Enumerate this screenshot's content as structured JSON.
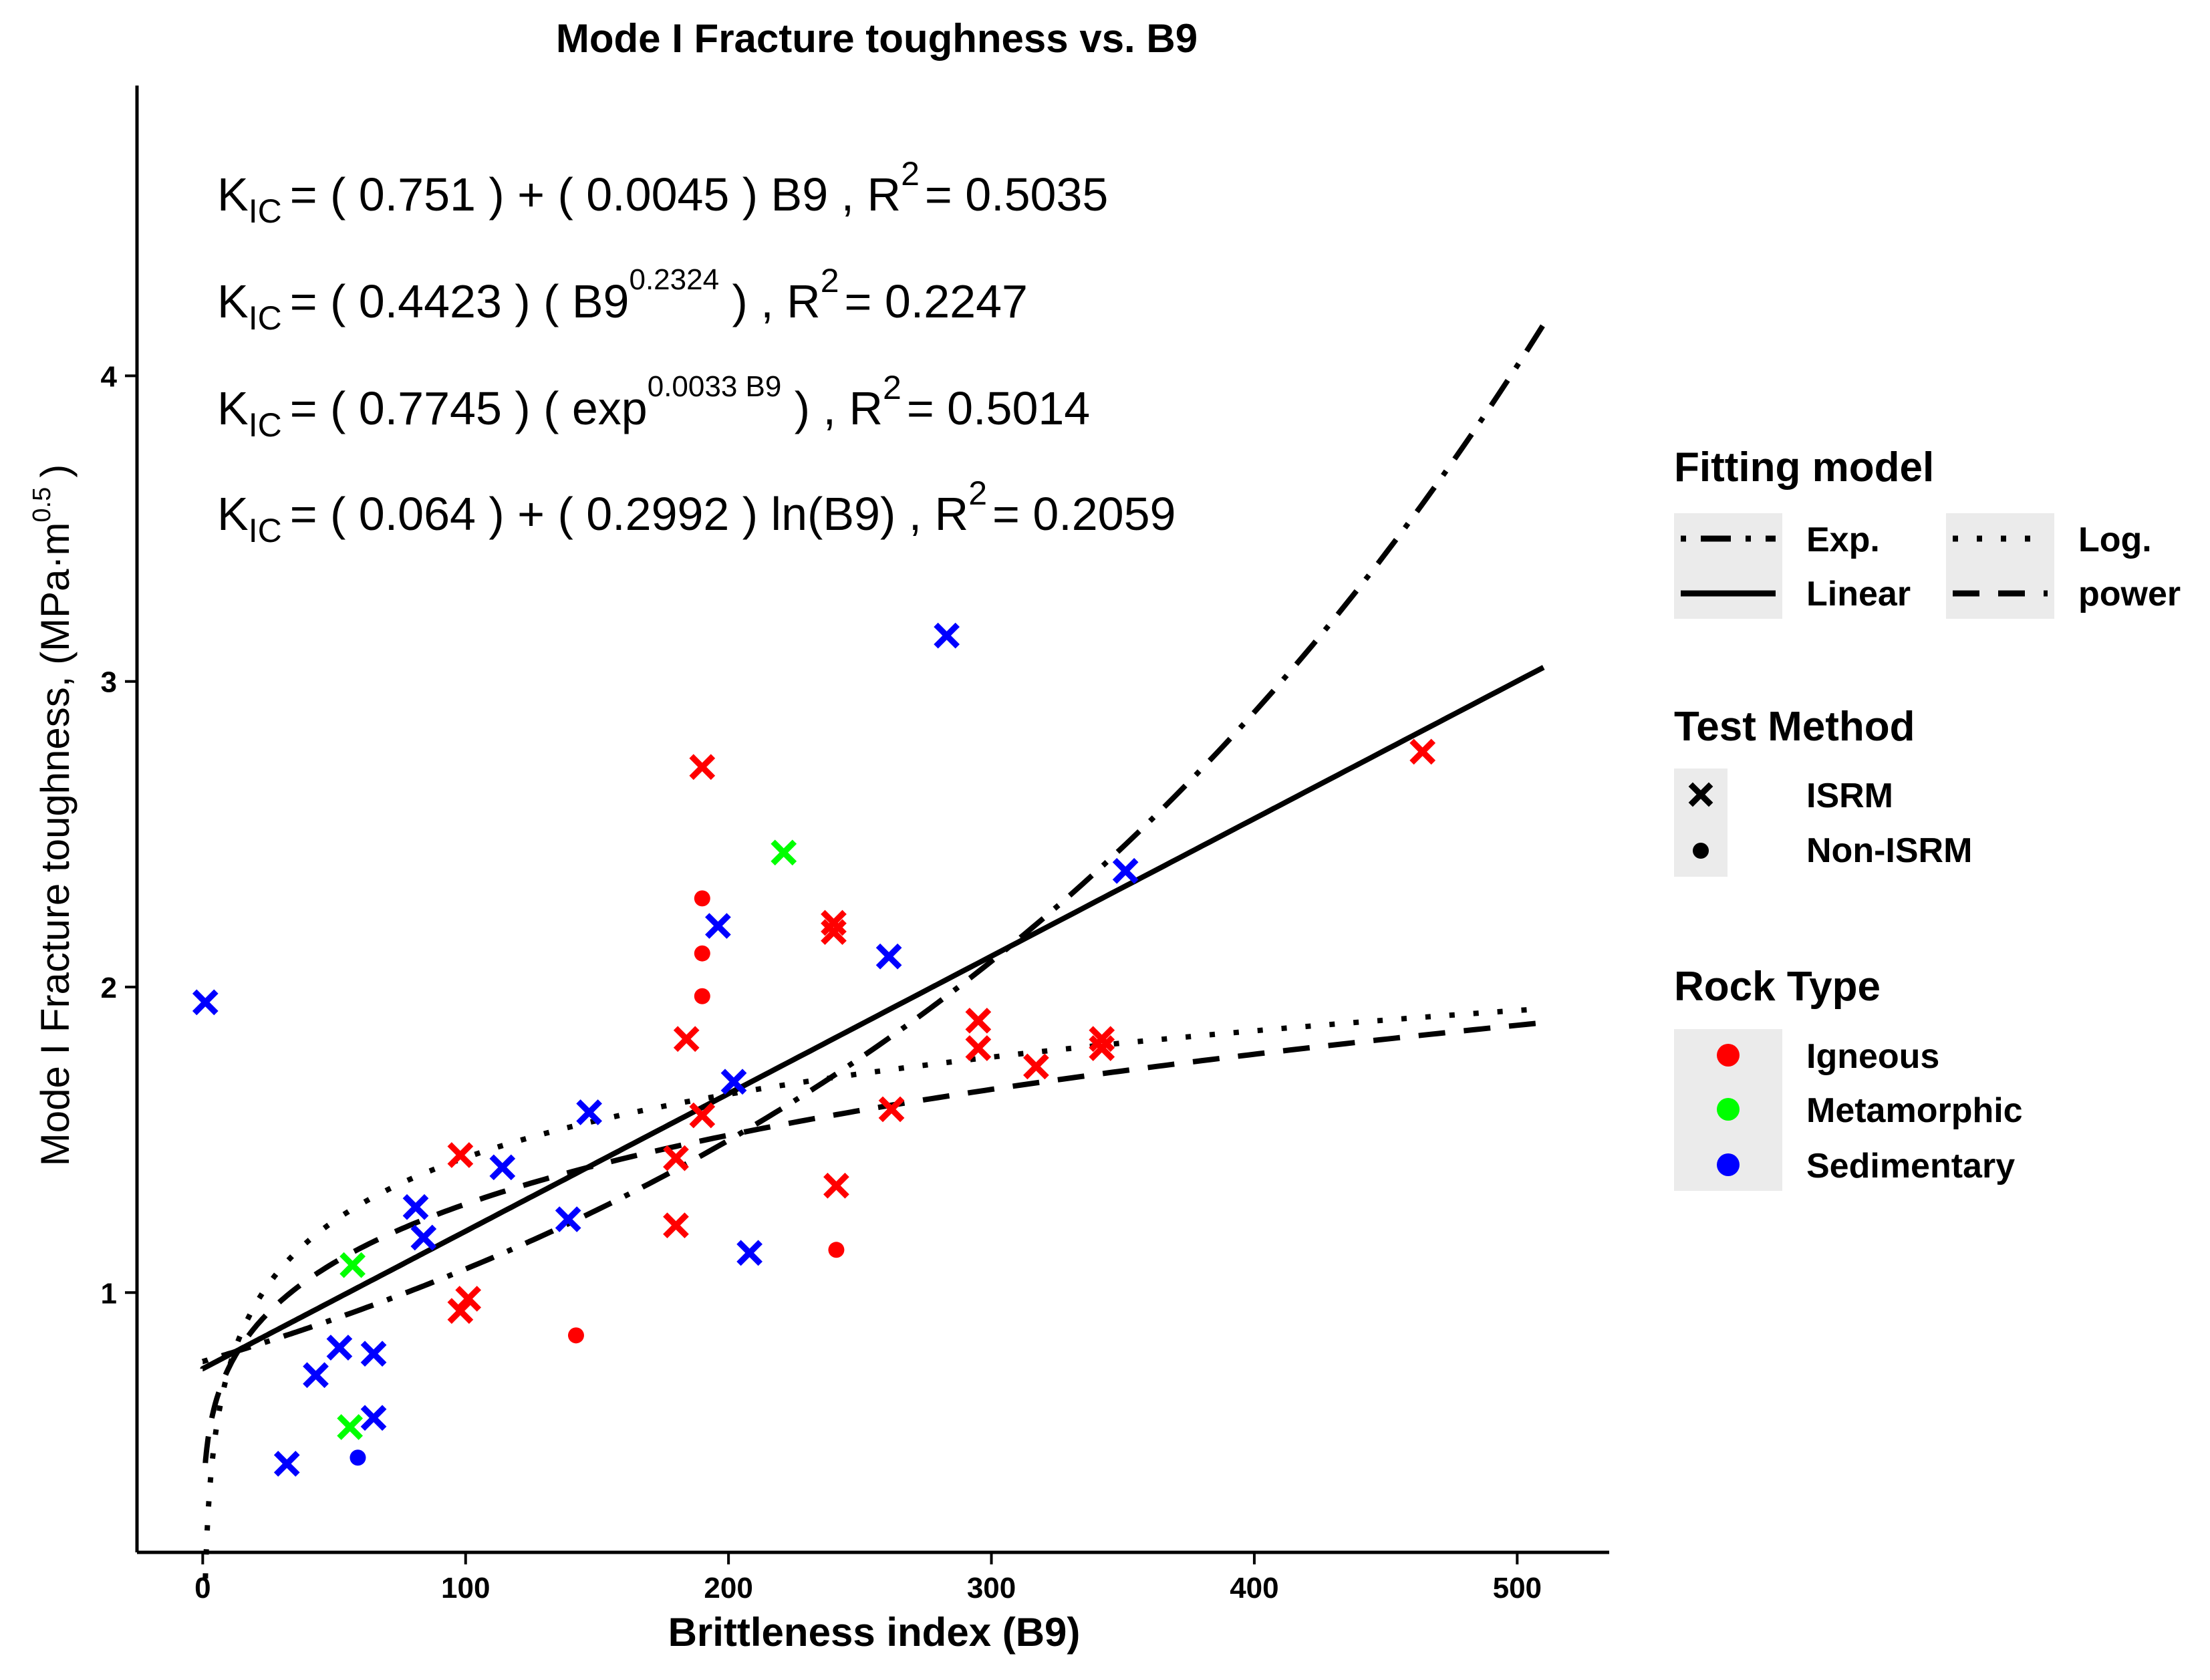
{
  "chart_data": {
    "type": "scatter",
    "title": "Mode I Fracture toughness vs. B9",
    "xlabel": "Brittleness index (B9)",
    "ylabel": "Mode I Fracture toughness, (MPa·m",
    "ylabel_exponent": "0.5",
    "ylabel_close": ")",
    "xlim": [
      -25,
      535
    ],
    "ylim": [
      0.15,
      4.95
    ],
    "xticks": [
      0,
      100,
      200,
      300,
      400,
      500
    ],
    "yticks": [
      1,
      2,
      3,
      4
    ],
    "grid": false,
    "colors": {
      "Igneous": "#ff0000",
      "Metamorphic": "#00ff00",
      "Sedimentary": "#0000ff",
      "lines": "#000000",
      "legend_key_bg": "#ebebeb"
    },
    "equations": [
      {
        "lhs": "K",
        "lhs_sub": "IC",
        "body": "= ( 0.751 ) + ( 0.0045 ) B9 ,  R",
        "r_sup": "2",
        "r_val": "= 0.5035"
      },
      {
        "lhs": "K",
        "lhs_sub": "IC",
        "pre": "= ( 0.4423 ) ( B9",
        "pre_sup": "0.2324",
        "post": " ) ,  R",
        "r_sup": "2",
        "r_val": "= 0.2247"
      },
      {
        "lhs": "K",
        "lhs_sub": "IC",
        "pre": "= ( 0.7745 ) ( exp",
        "pre_sup": "0.0033 B9",
        "post": " ) ,  R",
        "r_sup": "2",
        "r_val": "= 0.5014"
      },
      {
        "lhs": "K",
        "lhs_sub": "IC",
        "body": "= ( 0.064 ) + ( 0.2992 ) ln(B9) ,  R",
        "r_sup": "2",
        "r_val": "= 0.2059"
      }
    ],
    "fits": [
      {
        "name": "Linear",
        "style": "solid",
        "model": "linear",
        "a": 0.751,
        "b": 0.0045,
        "x_range": [
          0,
          510
        ]
      },
      {
        "name": "power",
        "style": "dashed",
        "model": "power",
        "a": 0.4423,
        "b": 0.2324,
        "x_range": [
          1,
          510
        ]
      },
      {
        "name": "Exp.",
        "style": "dotdash",
        "model": "exp",
        "a": 0.7745,
        "b": 0.0033,
        "x_range": [
          0,
          510
        ]
      },
      {
        "name": "Log.",
        "style": "dotted",
        "model": "log",
        "a": 0.064,
        "b": 0.2992,
        "x_range": [
          1,
          510
        ]
      }
    ],
    "points": [
      {
        "x": 1,
        "y": 1.95,
        "rock": "Sedimentary",
        "method": "ISRM"
      },
      {
        "x": 32,
        "y": 0.44,
        "rock": "Sedimentary",
        "method": "ISRM"
      },
      {
        "x": 43,
        "y": 0.73,
        "rock": "Sedimentary",
        "method": "ISRM"
      },
      {
        "x": 52,
        "y": 0.82,
        "rock": "Sedimentary",
        "method": "ISRM"
      },
      {
        "x": 56,
        "y": 0.56,
        "rock": "Metamorphic",
        "method": "ISRM"
      },
      {
        "x": 57,
        "y": 1.09,
        "rock": "Metamorphic",
        "method": "ISRM"
      },
      {
        "x": 59,
        "y": 0.46,
        "rock": "Sedimentary",
        "method": "Non-ISRM"
      },
      {
        "x": 65,
        "y": 0.8,
        "rock": "Sedimentary",
        "method": "ISRM"
      },
      {
        "x": 65,
        "y": 0.59,
        "rock": "Sedimentary",
        "method": "ISRM"
      },
      {
        "x": 81,
        "y": 1.28,
        "rock": "Sedimentary",
        "method": "ISRM"
      },
      {
        "x": 84,
        "y": 1.18,
        "rock": "Sedimentary",
        "method": "ISRM"
      },
      {
        "x": 98,
        "y": 1.45,
        "rock": "Igneous",
        "method": "ISRM"
      },
      {
        "x": 98,
        "y": 0.94,
        "rock": "Igneous",
        "method": "ISRM"
      },
      {
        "x": 101,
        "y": 0.98,
        "rock": "Igneous",
        "method": "ISRM"
      },
      {
        "x": 114,
        "y": 1.41,
        "rock": "Sedimentary",
        "method": "ISRM"
      },
      {
        "x": 139,
        "y": 1.24,
        "rock": "Sedimentary",
        "method": "ISRM"
      },
      {
        "x": 142,
        "y": 0.86,
        "rock": "Igneous",
        "method": "Non-ISRM"
      },
      {
        "x": 147,
        "y": 1.59,
        "rock": "Sedimentary",
        "method": "ISRM"
      },
      {
        "x": 180,
        "y": 1.44,
        "rock": "Igneous",
        "method": "ISRM"
      },
      {
        "x": 180,
        "y": 1.22,
        "rock": "Igneous",
        "method": "ISRM"
      },
      {
        "x": 184,
        "y": 1.83,
        "rock": "Igneous",
        "method": "ISRM"
      },
      {
        "x": 190,
        "y": 2.72,
        "rock": "Igneous",
        "method": "ISRM"
      },
      {
        "x": 190,
        "y": 2.29,
        "rock": "Igneous",
        "method": "Non-ISRM"
      },
      {
        "x": 190,
        "y": 2.11,
        "rock": "Igneous",
        "method": "Non-ISRM"
      },
      {
        "x": 190,
        "y": 1.97,
        "rock": "Igneous",
        "method": "Non-ISRM"
      },
      {
        "x": 190,
        "y": 1.58,
        "rock": "Igneous",
        "method": "ISRM"
      },
      {
        "x": 196,
        "y": 2.2,
        "rock": "Sedimentary",
        "method": "ISRM"
      },
      {
        "x": 202,
        "y": 1.69,
        "rock": "Sedimentary",
        "method": "ISRM"
      },
      {
        "x": 208,
        "y": 1.13,
        "rock": "Sedimentary",
        "method": "ISRM"
      },
      {
        "x": 221,
        "y": 2.44,
        "rock": "Metamorphic",
        "method": "ISRM"
      },
      {
        "x": 240,
        "y": 2.21,
        "rock": "Igneous",
        "method": "ISRM"
      },
      {
        "x": 240,
        "y": 2.18,
        "rock": "Igneous",
        "method": "ISRM"
      },
      {
        "x": 241,
        "y": 1.35,
        "rock": "Igneous",
        "method": "ISRM"
      },
      {
        "x": 241,
        "y": 1.14,
        "rock": "Igneous",
        "method": "Non-ISRM"
      },
      {
        "x": 261,
        "y": 2.1,
        "rock": "Sedimentary",
        "method": "ISRM"
      },
      {
        "x": 262,
        "y": 1.6,
        "rock": "Igneous",
        "method": "ISRM"
      },
      {
        "x": 283,
        "y": 3.15,
        "rock": "Sedimentary",
        "method": "ISRM"
      },
      {
        "x": 295,
        "y": 1.89,
        "rock": "Igneous",
        "method": "ISRM"
      },
      {
        "x": 295,
        "y": 1.8,
        "rock": "Igneous",
        "method": "ISRM"
      },
      {
        "x": 317,
        "y": 1.74,
        "rock": "Igneous",
        "method": "ISRM"
      },
      {
        "x": 342,
        "y": 1.83,
        "rock": "Igneous",
        "method": "ISRM"
      },
      {
        "x": 342,
        "y": 1.8,
        "rock": "Igneous",
        "method": "ISRM"
      },
      {
        "x": 351,
        "y": 2.38,
        "rock": "Sedimentary",
        "method": "ISRM"
      },
      {
        "x": 464,
        "y": 2.77,
        "rock": "Igneous",
        "method": "ISRM"
      }
    ],
    "legend": {
      "placement": "right",
      "fitting_model": {
        "title": "Fitting model",
        "items": [
          "Exp.",
          "Log.",
          "Linear",
          "power"
        ]
      },
      "test_method": {
        "title": "Test Method",
        "items": [
          "ISRM",
          "Non-ISRM"
        ]
      },
      "rock_type": {
        "title": "Rock Type",
        "items": [
          "Igneous",
          "Metamorphic",
          "Sedimentary"
        ]
      }
    }
  }
}
